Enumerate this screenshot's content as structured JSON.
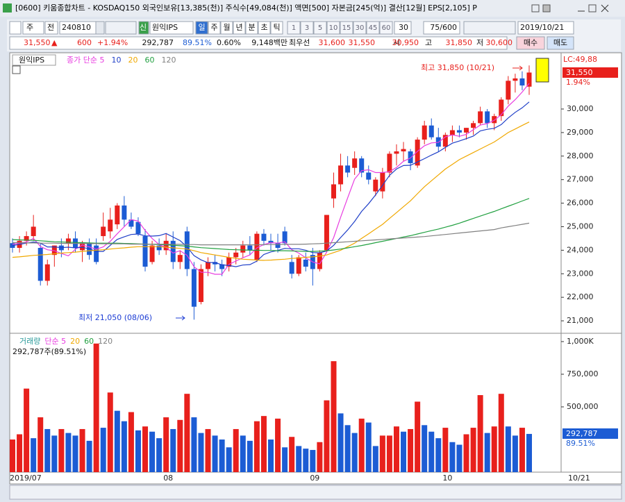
{
  "window_title": "[0600] 키움종합차트 - KOSDAQ150 외국인보유[13,385(천)] 주식수[49,084(천)] 액면[500] 자본금[245(억)] 결산[12월] EPS[2,105] P",
  "toolbar": {
    "period": "주",
    "prev": "전",
    "code": "240810",
    "credit": "신",
    "name": "원익IPS",
    "intervals": [
      "일",
      "주",
      "월",
      "년",
      "분",
      "초",
      "틱"
    ],
    "minutes": [
      "1",
      "3",
      "5",
      "10",
      "15",
      "30",
      "45",
      "60"
    ],
    "custom": "30",
    "count": "75/600",
    "date": "2019/10/21"
  },
  "quote": {
    "price": "31,550",
    "arrow": "▲",
    "change": "600",
    "rate": "+1.94%",
    "volume": "292,787",
    "volume_rate": "89.51%",
    "turnover": "0.60%",
    "amount": "9,148백만",
    "best_label": "최우선",
    "ask": "31,600",
    "bid": "31,550",
    "open_label": "시",
    "open": "30,950",
    "high_label": "고",
    "high": "31,850",
    "low_label": "저",
    "low": "30,600",
    "buy": "매수",
    "sell": "매도"
  },
  "chart_data": [
    {
      "type": "candlestick",
      "name": "원익IPS",
      "categories": [
        "2019/07",
        null,
        null,
        null,
        null,
        null,
        null,
        null,
        null,
        null,
        null,
        null,
        null,
        null,
        null,
        null,
        null,
        null,
        null,
        null,
        null,
        null,
        "08",
        null,
        null,
        null,
        null,
        null,
        null,
        null,
        null,
        null,
        null,
        null,
        null,
        null,
        null,
        null,
        null,
        null,
        null,
        null,
        null,
        "09",
        null,
        null,
        null,
        null,
        null,
        null,
        null,
        null,
        null,
        null,
        null,
        null,
        null,
        null,
        null,
        null,
        null,
        null,
        "10",
        null,
        null,
        null,
        null,
        null,
        null,
        null,
        null,
        null,
        null,
        null,
        null
      ],
      "open": [
        24300,
        24100,
        24400,
        24600,
        24100,
        22700,
        23800,
        24200,
        24300,
        24500,
        24000,
        24300,
        24200,
        24600,
        24800,
        25100,
        25900,
        25300,
        25200,
        24600,
        23500,
        24200,
        24000,
        24400,
        23500,
        24800,
        23200,
        21800,
        23200,
        23500,
        23400,
        23300,
        23700,
        23900,
        24200,
        23600,
        24700,
        24400,
        24300,
        24800,
        23500,
        23000,
        23600,
        23800,
        23200,
        24000,
        26200,
        26800,
        27600,
        27500,
        27900,
        27300,
        26500,
        26500,
        27300,
        28100,
        28200,
        28200,
        27600,
        28700,
        29300,
        28800,
        28400,
        28900,
        29100,
        29000,
        29200,
        29400,
        29900,
        29400,
        29700,
        30400,
        31200,
        31300,
        30950
      ],
      "high": [
        24500,
        24600,
        24800,
        25500,
        24300,
        23600,
        24200,
        24500,
        24700,
        24800,
        24400,
        24500,
        24500,
        25600,
        25800,
        26000,
        26300,
        25600,
        25400,
        24900,
        24400,
        24500,
        24700,
        24800,
        24000,
        25000,
        23500,
        23400,
        23700,
        23800,
        23600,
        23900,
        24100,
        24400,
        24600,
        24800,
        24900,
        24700,
        24700,
        25000,
        23800,
        23800,
        23900,
        24100,
        24000,
        25500,
        27300,
        28100,
        28000,
        28200,
        28000,
        27600,
        27100,
        27500,
        28200,
        28500,
        28600,
        28300,
        28800,
        29500,
        29600,
        29200,
        29000,
        29300,
        29300,
        29200,
        29500,
        30100,
        30000,
        29800,
        30500,
        31400,
        31500,
        31600,
        31850
      ],
      "low": [
        23900,
        23900,
        24200,
        24400,
        22500,
        22500,
        23300,
        23700,
        24000,
        23900,
        23500,
        23600,
        23400,
        24400,
        24500,
        24900,
        25000,
        24900,
        24600,
        23100,
        23400,
        23800,
        23800,
        23200,
        23200,
        22900,
        21050,
        21700,
        22900,
        23100,
        22900,
        23100,
        23400,
        23700,
        23800,
        23500,
        24200,
        24000,
        23900,
        24200,
        22800,
        22900,
        23100,
        22500,
        23100,
        23900,
        25800,
        26500,
        27100,
        27200,
        27100,
        26800,
        26300,
        26200,
        27100,
        27600,
        27800,
        27400,
        27500,
        28500,
        28700,
        28200,
        28200,
        28600,
        28800,
        28700,
        28900,
        29300,
        29200,
        29100,
        29500,
        30200,
        30700,
        30800,
        30600
      ],
      "close": [
        24100,
        24400,
        24600,
        25000,
        22700,
        23400,
        24200,
        24000,
        24500,
        24100,
        24300,
        23800,
        23500,
        25000,
        25300,
        25900,
        25300,
        25000,
        24700,
        23300,
        24200,
        24000,
        24400,
        23500,
        23800,
        23200,
        21600,
        23200,
        23500,
        23400,
        23200,
        23700,
        23900,
        24200,
        24000,
        24700,
        24400,
        24300,
        24100,
        24300,
        23000,
        23700,
        23300,
        23200,
        23900,
        25500,
        26800,
        27600,
        27300,
        27900,
        27300,
        27000,
        27000,
        27300,
        28100,
        28200,
        28300,
        27700,
        28700,
        29300,
        28800,
        28400,
        28900,
        29100,
        29000,
        29200,
        29400,
        29900,
        29400,
        29700,
        30400,
        31200,
        31300,
        31000,
        31550
      ],
      "up_color": "#e8201c",
      "down_color": "#1c5cd4",
      "series": [
        {
          "name": "종가 단순 5",
          "color": "#e83ce0",
          "values": [
            24250,
            24300,
            24350,
            24500,
            24160,
            24020,
            23980,
            23860,
            23760,
            24040,
            24220,
            24140,
            24040,
            24140,
            24380,
            24700,
            25000,
            25300,
            25240,
            24840,
            24500,
            24240,
            24120,
            23880,
            23980,
            23780,
            23300,
            23060,
            23060,
            22980,
            22980,
            23400,
            23540,
            23680,
            23800,
            24100,
            24240,
            24320,
            24300,
            24360,
            24020,
            23880,
            23680,
            23500,
            23420,
            23920,
            24540,
            25400,
            26220,
            27020,
            27380,
            27420,
            27300,
            27300,
            27340,
            27520,
            27780,
            27920,
            28200,
            28440,
            28560,
            28580,
            28820,
            28900,
            28840,
            28920,
            29120,
            29320,
            29380,
            29520,
            29760,
            30120,
            30400,
            30720,
            31090
          ]
        },
        {
          "name": "10",
          "color": "#1f3fc8",
          "values": [
            24200,
            24250,
            24300,
            24350,
            24300,
            24140,
            24140,
            24110,
            24130,
            24100,
            24120,
            24060,
            23950,
            23950,
            24210,
            24460,
            24570,
            24670,
            24690,
            24610,
            24600,
            24620,
            24710,
            24560,
            24410,
            24140,
            23770,
            23590,
            23470,
            23480,
            23380,
            23350,
            23300,
            23370,
            23390,
            23540,
            23820,
            23930,
            23990,
            24080,
            24060,
            24060,
            24000,
            23900,
            23890,
            23970,
            24210,
            24540,
            24860,
            25220,
            25650,
            25980,
            26350,
            26760,
            27180,
            27450,
            27600,
            27610,
            27750,
            27890,
            28040,
            28180,
            28370,
            28550,
            28640,
            28740,
            28850,
            29070,
            29140,
            29180,
            29340,
            29620,
            29860,
            30050,
            30300
          ]
        },
        {
          "name": "20",
          "color": "#f0a800",
          "values": [
            23700,
            23720,
            23750,
            23780,
            23800,
            23820,
            23850,
            23880,
            23900,
            23920,
            23950,
            23980,
            24000,
            24020,
            24050,
            24080,
            24100,
            24130,
            24150,
            24150,
            24150,
            24150,
            24130,
            24100,
            24080,
            24050,
            23980,
            23900,
            23850,
            23800,
            23750,
            23700,
            23650,
            23620,
            23600,
            23580,
            23570,
            23580,
            23600,
            23620,
            23650,
            23670,
            23700,
            23720,
            23750,
            23800,
            23900,
            24000,
            24150,
            24300,
            24500,
            24700,
            24900,
            25100,
            25350,
            25600,
            25850,
            26100,
            26400,
            26700,
            26950,
            27200,
            27450,
            27650,
            27850,
            28000,
            28150,
            28300,
            28450,
            28600,
            28800,
            29000,
            29150,
            29300,
            29450
          ]
        },
        {
          "name": "60",
          "color": "#21a040",
          "values": [
            24450,
            24440,
            24430,
            24420,
            24400,
            24380,
            24360,
            24350,
            24340,
            24330,
            24320,
            24310,
            24300,
            24300,
            24300,
            24300,
            24290,
            24280,
            24270,
            24260,
            24250,
            24240,
            24230,
            24210,
            24190,
            24170,
            24140,
            24110,
            24090,
            24070,
            24050,
            24030,
            24020,
            24010,
            24000,
            24000,
            23990,
            23990,
            23980,
            23980,
            23970,
            23960,
            23950,
            23950,
            23960,
            23980,
            24010,
            24050,
            24100,
            24150,
            24200,
            24260,
            24320,
            24380,
            24440,
            24500,
            24560,
            24620,
            24690,
            24760,
            24830,
            24900,
            24980,
            25060,
            25150,
            25250,
            25350,
            25450,
            25550,
            25650,
            25760,
            25870,
            25980,
            26090,
            26200
          ]
        },
        {
          "name": "120",
          "color": "#808080",
          "values": [
            24320,
            24320,
            24310,
            24310,
            24300,
            24300,
            24300,
            24290,
            24290,
            24290,
            24280,
            24280,
            24280,
            24270,
            24270,
            24270,
            24270,
            24260,
            24260,
            24260,
            24260,
            24260,
            24250,
            24250,
            24250,
            24240,
            24240,
            24230,
            24230,
            24230,
            24230,
            24230,
            24230,
            24230,
            24230,
            24230,
            24240,
            24240,
            24240,
            24250,
            24250,
            24250,
            24260,
            24270,
            24280,
            24300,
            24320,
            24340,
            24360,
            24380,
            24400,
            24420,
            24440,
            24460,
            24480,
            24500,
            24520,
            24540,
            24560,
            24580,
            24610,
            24640,
            24670,
            24700,
            24730,
            24760,
            24790,
            24820,
            24850,
            24880,
            24950,
            25000,
            25050,
            25100,
            25150
          ]
        }
      ],
      "ylim": [
        20530,
        32390
      ],
      "yticks": [
        {
          "value": 21000,
          "label": "21,000"
        },
        {
          "value": 22000,
          "label": "22,000"
        },
        {
          "value": 23000,
          "label": "23,000"
        },
        {
          "value": 24000,
          "label": "24,000"
        },
        {
          "value": 25000,
          "label": "25,000"
        },
        {
          "value": 26000,
          "label": "26,000"
        },
        {
          "value": 27000,
          "label": "27,000"
        },
        {
          "value": 28000,
          "label": "28,000"
        },
        {
          "value": 29000,
          "label": "29,000"
        },
        {
          "value": 30000,
          "label": "30,000"
        }
      ],
      "annotations": [
        {
          "text": "최고 31,850 (10/21)",
          "color": "#e8201c"
        },
        {
          "text": "최저 21,050 (08/06)",
          "color": "#1c3cd4"
        }
      ],
      "lc_label": "LC:49,88",
      "price_label": "31,550",
      "rate_label": "1.94%"
    },
    {
      "type": "volume",
      "legend": [
        {
          "name": "거래량",
          "color": "#2a9a9a"
        },
        {
          "name": "단순 5",
          "color": "#e83ce0"
        },
        {
          "name": "20",
          "color": "#f0a800"
        },
        {
          "name": "60",
          "color": "#21a040"
        },
        {
          "name": "120",
          "color": "#808080"
        }
      ],
      "summary": "292,787주(89.51%)",
      "values": [
        250000,
        290000,
        640000,
        260000,
        420000,
        330000,
        280000,
        330000,
        300000,
        280000,
        330000,
        240000,
        985000,
        340000,
        610000,
        470000,
        390000,
        460000,
        320000,
        350000,
        310000,
        260000,
        420000,
        330000,
        400000,
        600000,
        420000,
        300000,
        330000,
        280000,
        250000,
        190000,
        330000,
        280000,
        240000,
        390000,
        430000,
        250000,
        410000,
        190000,
        270000,
        200000,
        180000,
        170000,
        230000,
        550000,
        850000,
        450000,
        360000,
        300000,
        410000,
        380000,
        200000,
        280000,
        280000,
        350000,
        310000,
        330000,
        540000,
        360000,
        310000,
        260000,
        340000,
        230000,
        210000,
        290000,
        340000,
        590000,
        300000,
        350000,
        600000,
        350000,
        280000,
        340000,
        292787
      ],
      "up_color": "#e8201c",
      "down_color": "#1c5cd4",
      "ylim": [
        0,
        1053000
      ],
      "yticks": [
        {
          "value": 500000,
          "label": "500,000"
        },
        {
          "value": 750000,
          "label": "750,000"
        },
        {
          "value": 1000000,
          "label": "1,000K"
        }
      ],
      "last_value_label": "292,787",
      "last_rate_label": "89.51%",
      "date_label": "10/21"
    }
  ]
}
